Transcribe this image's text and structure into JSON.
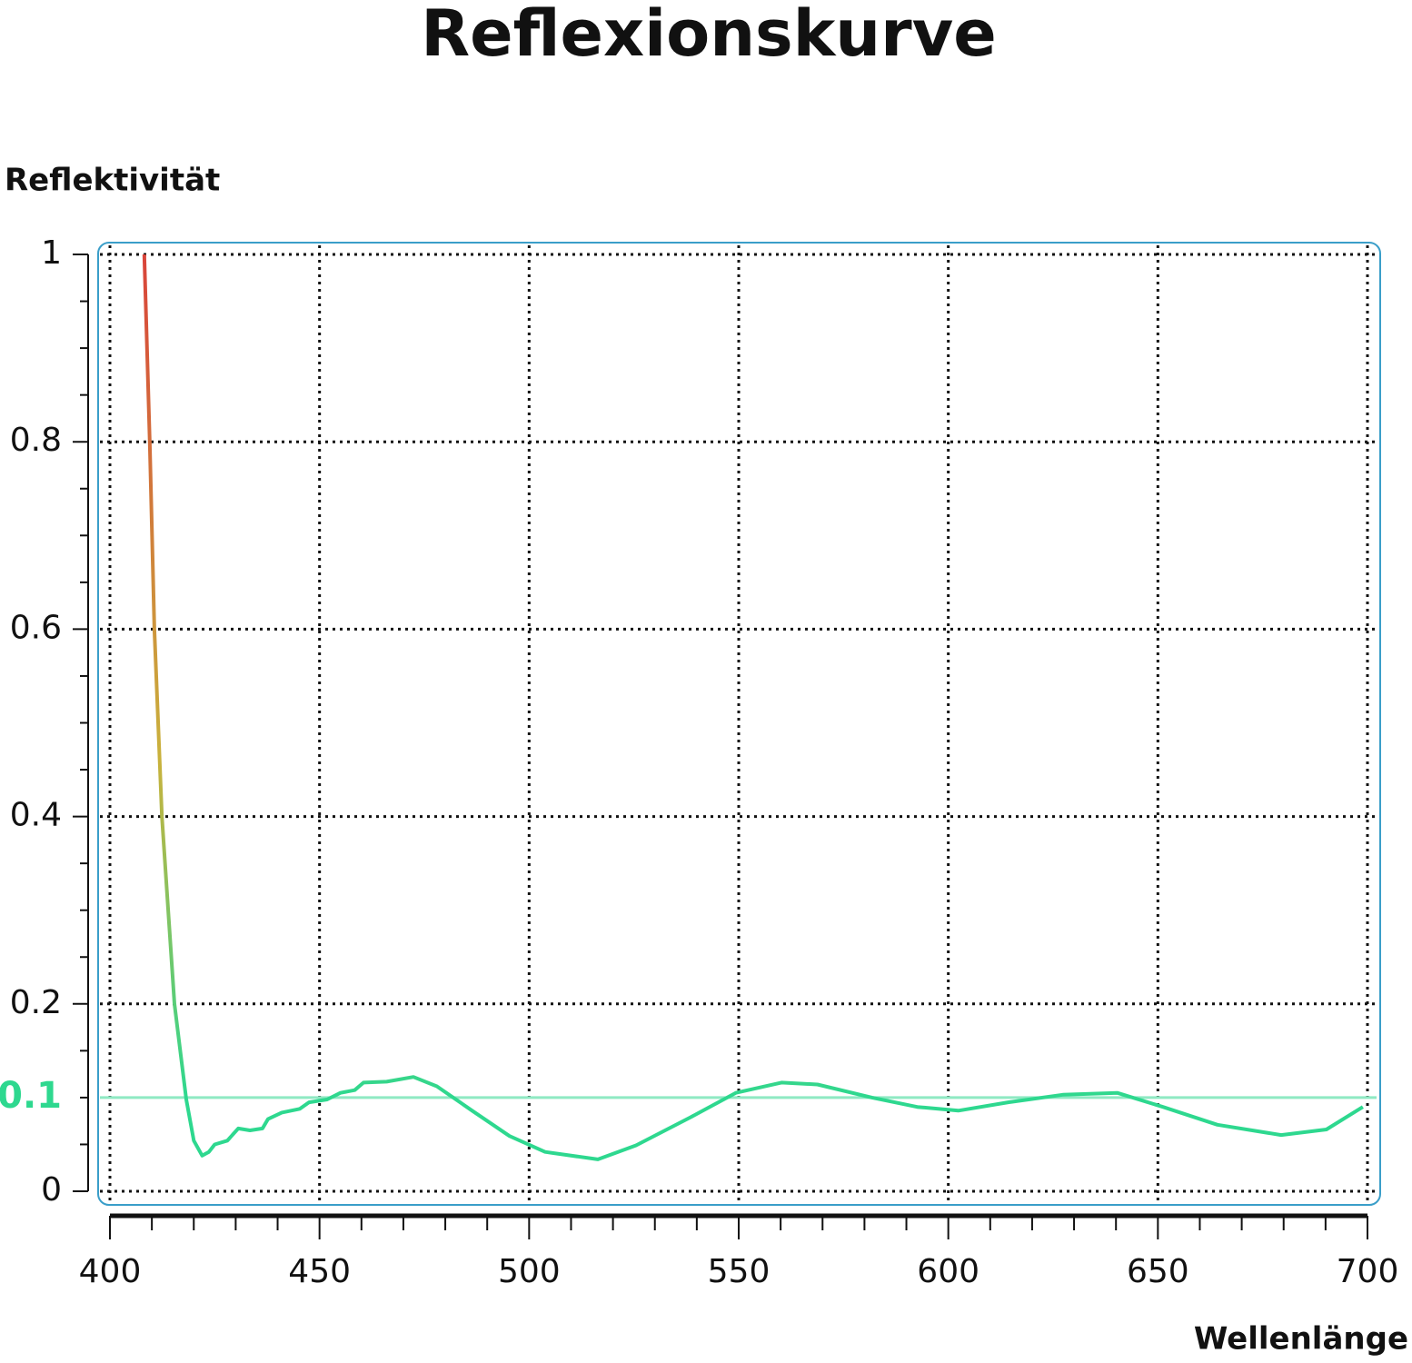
{
  "chart_data": {
    "type": "line",
    "title": "Reflexionskurve",
    "y_label": "Reflektivität",
    "x_label": "Wellenlänge",
    "x": [
      408.2,
      409.5,
      410.6,
      412.4,
      415.4,
      418.2,
      420,
      422,
      423.6,
      425,
      428,
      430.6,
      433.4,
      436.4,
      437.7,
      441,
      445.3,
      447.5,
      451.8,
      455,
      458.4,
      460.5,
      466,
      472.4,
      478,
      486.4,
      495.3,
      503.8,
      516.4,
      525.5,
      538.5,
      549.3,
      560.2,
      568.8,
      581.8,
      592.6,
      602.4,
      614.3,
      627.3,
      640.3,
      651.2,
      664.2,
      679.4,
      690.2,
      698.9
    ],
    "series": [
      {
        "colors": [
          "#d9443a",
          "#c9b23c",
          "#2ed88f"
        ],
        "values": [
          1.0,
          0.8,
          0.6,
          0.4,
          0.2,
          0.098,
          0.054,
          0.038,
          0.042,
          0.05,
          0.054,
          0.067,
          0.065,
          0.067,
          0.077,
          0.084,
          0.088,
          0.095,
          0.098,
          0.105,
          0.108,
          0.116,
          0.117,
          0.122,
          0.112,
          0.086,
          0.059,
          0.042,
          0.034,
          0.049,
          0.079,
          0.105,
          0.116,
          0.114,
          0.1,
          0.09,
          0.086,
          0.095,
          0.103,
          0.105,
          0.09,
          0.071,
          0.06,
          0.066,
          0.09
        ]
      }
    ],
    "reference_line": {
      "value": 0.1,
      "color": "#2ed88f",
      "line_color": "#8fe9c3"
    },
    "xlim": [
      400,
      700
    ],
    "xticks": [
      400,
      450,
      500,
      550,
      600,
      650,
      700
    ],
    "xminorticks": [
      410,
      420,
      430,
      440,
      460,
      470,
      480,
      490,
      510,
      520,
      530,
      540,
      560,
      570,
      580,
      590,
      610,
      620,
      630,
      640,
      660,
      670,
      680,
      690
    ],
    "ylim": [
      0,
      1
    ],
    "yticks": [
      0,
      0.2,
      0.4,
      0.6,
      0.8,
      1
    ],
    "yminorticks": [
      0.05,
      0.1,
      0.15,
      0.25,
      0.3,
      0.35,
      0.45,
      0.5,
      0.55,
      0.65,
      0.7,
      0.75,
      0.85,
      0.9,
      0.95
    ],
    "grid": true,
    "frame_color": "#3a9ec9"
  }
}
